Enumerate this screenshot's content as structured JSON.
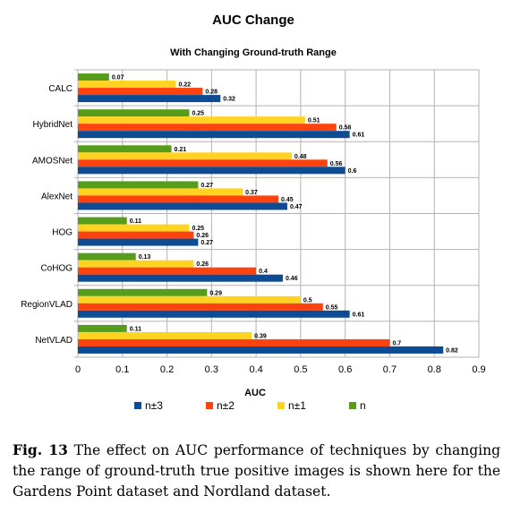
{
  "colors": {
    "n±3": "#0d4c93",
    "n±2": "#ff420e",
    "n±1": "#ffd320",
    "n": "#579d1c",
    "grid": "#b3b3b3"
  },
  "chart_data": {
    "type": "bar",
    "orientation": "horizontal",
    "title": "AUC Change",
    "subtitle": "With Changing Ground-truth Range",
    "xlabel": "AUC",
    "ylabel": "",
    "xlim": [
      0,
      0.9
    ],
    "xticks": [
      "0",
      "0.1",
      "0.2",
      "0.3",
      "0.4",
      "0.5",
      "0.6",
      "0.7",
      "0.8",
      "0.9"
    ],
    "grid": true,
    "legend_position": "bottom",
    "categories": [
      "CALC",
      "HybridNet",
      "AMOSNet",
      "AlexNet",
      "HOG",
      "CoHOG",
      "RegionVLAD",
      "NetVLAD"
    ],
    "series": [
      {
        "name": "n",
        "values": [
          0.07,
          0.25,
          0.21,
          0.27,
          0.11,
          0.13,
          0.29,
          0.11
        ]
      },
      {
        "name": "n±1",
        "values": [
          0.22,
          0.51,
          0.48,
          0.37,
          0.25,
          0.26,
          0.5,
          0.39
        ]
      },
      {
        "name": "n±2",
        "values": [
          0.28,
          0.58,
          0.56,
          0.45,
          0.26,
          0.4,
          0.55,
          0.7
        ]
      },
      {
        "name": "n±3",
        "values": [
          0.32,
          0.61,
          0.6,
          0.47,
          0.27,
          0.46,
          0.61,
          0.82
        ]
      }
    ],
    "legend_order": [
      "n±3",
      "n±2",
      "n±1",
      "n"
    ]
  },
  "caption": {
    "label": "Fig. 13",
    "text": "The effect on AUC performance of techniques by changing the range of ground-truth true positive images is shown here for the Gardens Point dataset and Nordland dataset."
  }
}
